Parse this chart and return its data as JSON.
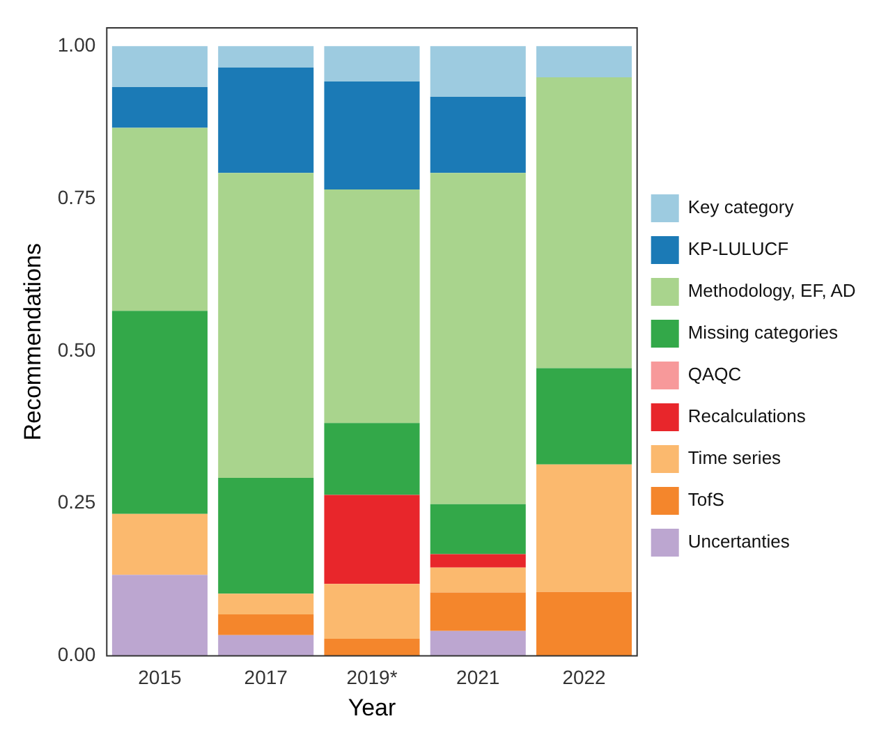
{
  "chart_data": {
    "type": "bar",
    "stacked": true,
    "xlabel": "Year",
    "ylabel": "Recommendations",
    "categories": [
      "2015",
      "2017",
      "2019*",
      "2021",
      "2022"
    ],
    "ylim": [
      0,
      1.03
    ],
    "yticks": [
      {
        "value": 0,
        "label": "0.00"
      },
      {
        "value": 0.25,
        "label": "0.25"
      },
      {
        "value": 0.5,
        "label": "0.50"
      },
      {
        "value": 0.75,
        "label": "0.75"
      },
      {
        "value": 1,
        "label": "1.00"
      }
    ],
    "grid": false,
    "legend": "right",
    "series": [
      {
        "name": "Uncertanties",
        "color": "#bca6d0",
        "values": [
          0.133,
          0.034,
          0,
          0.041,
          0
        ]
      },
      {
        "name": "TofS",
        "color": "#f4862c",
        "values": [
          0,
          0.034,
          0.028,
          0.063,
          0.105
        ]
      },
      {
        "name": "Time series",
        "color": "#fbb96e",
        "values": [
          0.1,
          0.034,
          0.09,
          0.041,
          0.209
        ]
      },
      {
        "name": "Recalculations",
        "color": "#e8262b",
        "values": [
          0,
          0,
          0.146,
          0.022,
          0
        ]
      },
      {
        "name": "QAQC",
        "color": "#f7999a",
        "values": [
          0,
          0,
          0,
          0,
          0
        ]
      },
      {
        "name": "Missing categories",
        "color": "#33a849",
        "values": [
          0.333,
          0.19,
          0.118,
          0.082,
          0.158
        ]
      },
      {
        "name": "Methodology, EF, AD",
        "color": "#a9d48d",
        "values": [
          0.3,
          0.5,
          0.383,
          0.543,
          0.477
        ]
      },
      {
        "name": "KP-LULUCF",
        "color": "#1b7ab6",
        "values": [
          0.067,
          0.173,
          0.177,
          0.125,
          0
        ]
      },
      {
        "name": "Key category",
        "color": "#9dcbe0",
        "values": [
          0.067,
          0.035,
          0.058,
          0.083,
          0.051
        ]
      }
    ]
  }
}
